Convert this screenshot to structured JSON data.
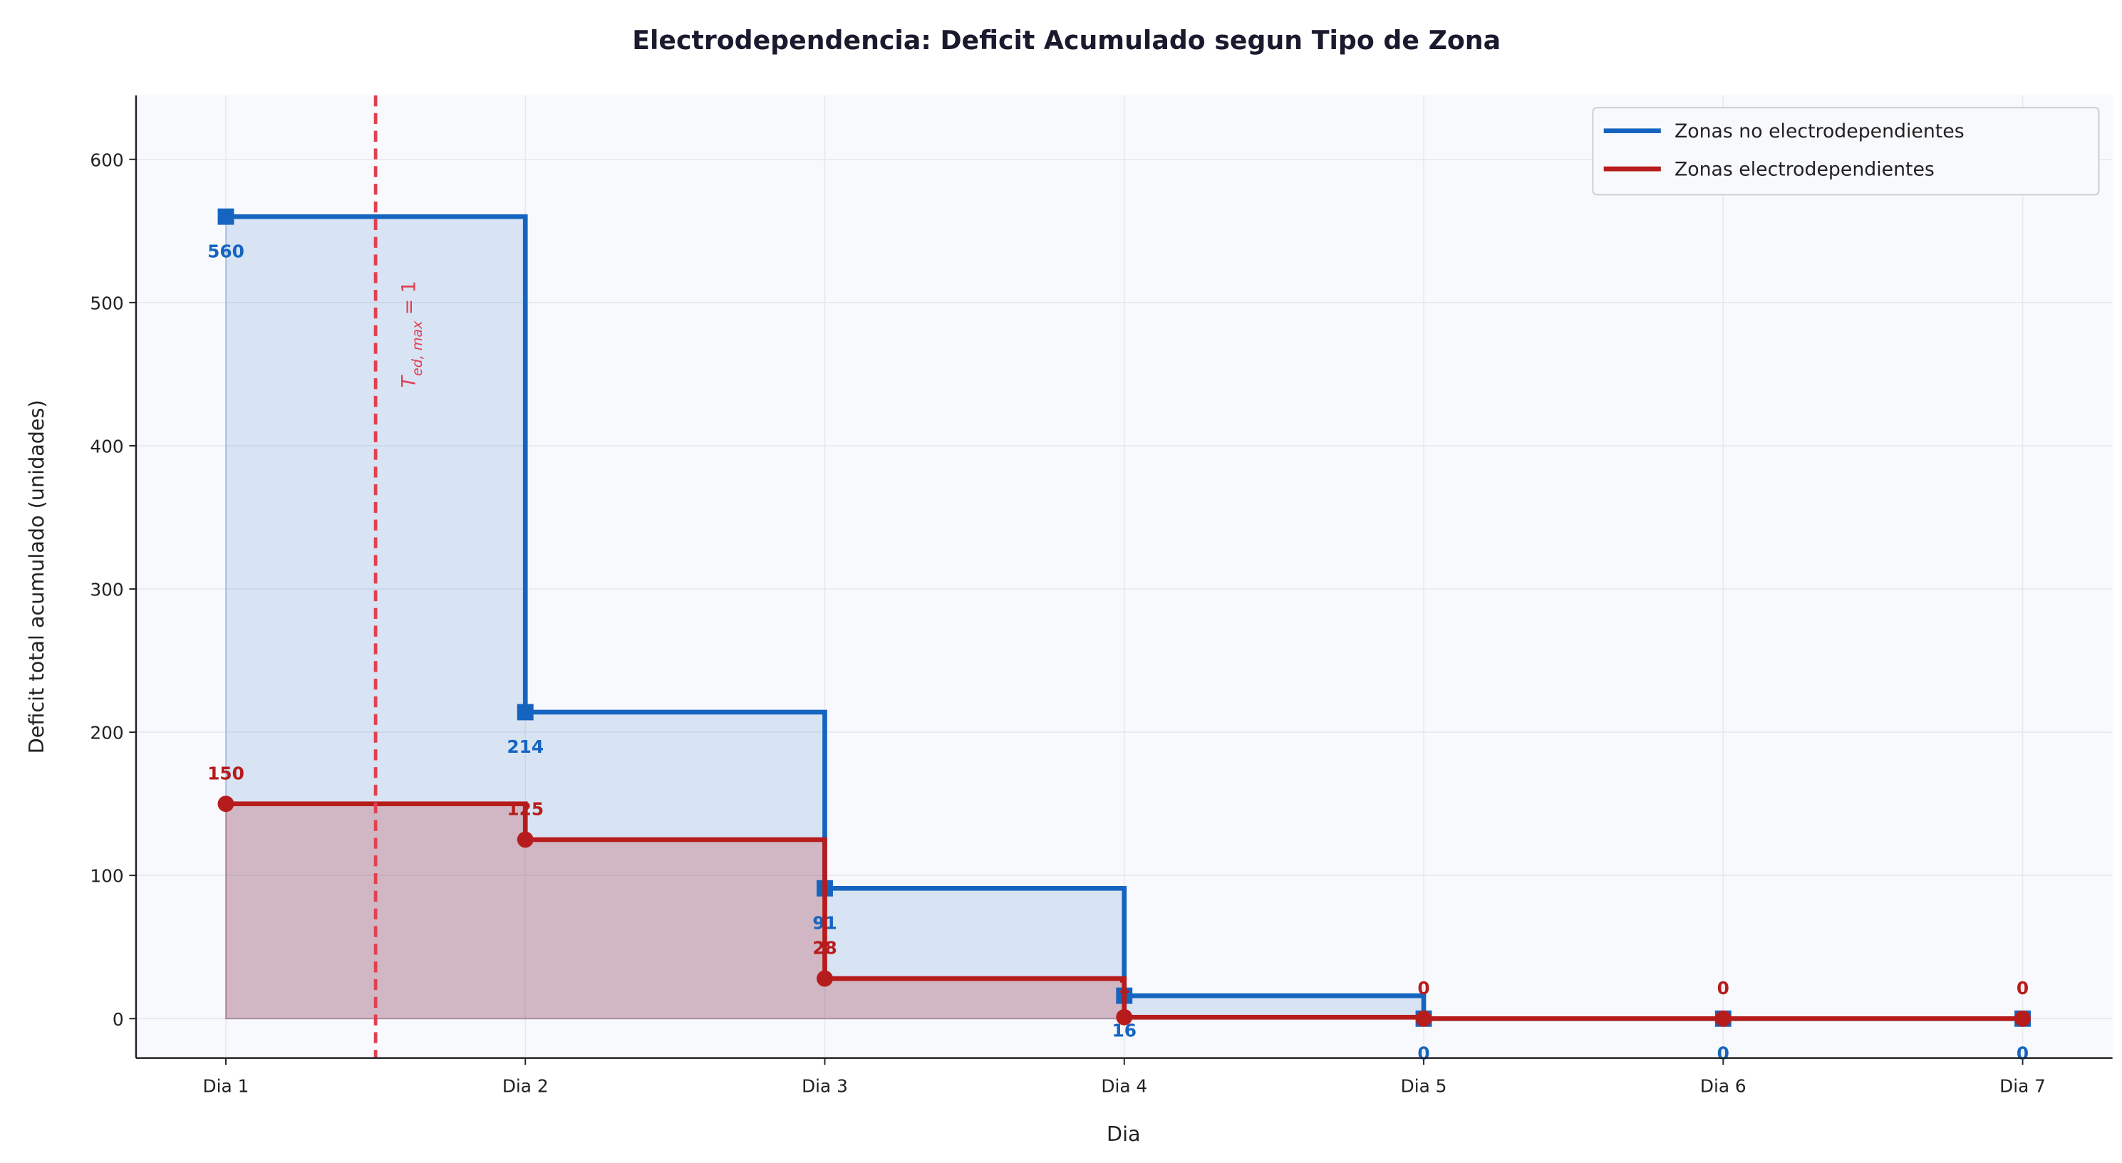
{
  "chart_data": {
    "type": "step",
    "title": "Electrodependencia: Deficit Acumulado segun Tipo de Zona",
    "x_label": "Dia",
    "y_label": "Deficit total acumulado (unidades)",
    "categories": [
      "Dia 1",
      "Dia 2",
      "Dia 3",
      "Dia 4",
      "Dia 5",
      "Dia 6",
      "Dia 7"
    ],
    "series": [
      {
        "name": "Zonas no electrodependientes",
        "color": "#1565c0",
        "marker": "square",
        "values": [
          560,
          214,
          91,
          16,
          0,
          0,
          0
        ]
      },
      {
        "name": "Zonas electrodependientes",
        "color": "#b71c1c",
        "marker": "circle",
        "values": [
          150,
          125,
          28,
          1,
          0,
          0,
          0
        ]
      }
    ],
    "ylim": [
      -27.5,
      644.6
    ],
    "yticks": [
      0,
      100,
      200,
      300,
      400,
      500,
      600
    ],
    "grid": true,
    "legend": "upper right",
    "annotation": {
      "text": "T",
      "subscript": "ed, max",
      "suffix": " = 1",
      "position": 1.5,
      "color": "#e04050"
    }
  }
}
